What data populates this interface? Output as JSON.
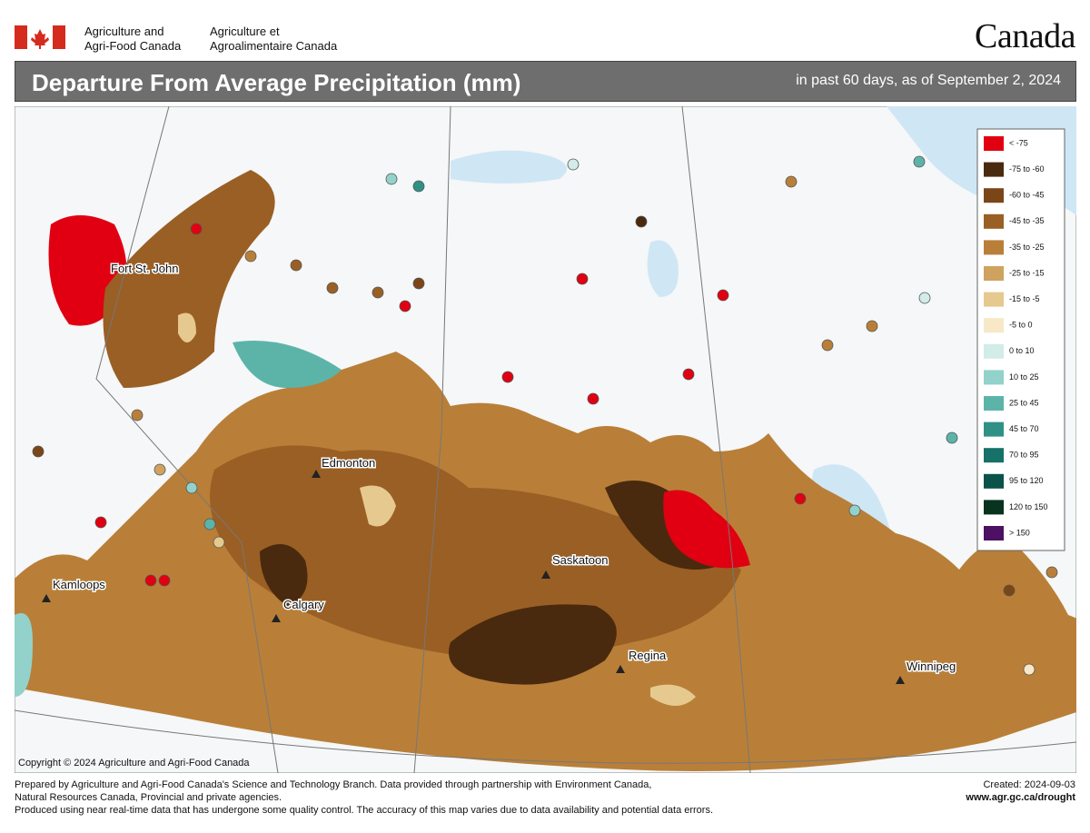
{
  "header": {
    "dept_en": [
      "Agriculture and",
      "Agri-Food Canada"
    ],
    "dept_fr": [
      "Agriculture et",
      "Agroalimentaire Canada"
    ],
    "wordmark": "Canada"
  },
  "title": "Departure From Average Precipitation (mm)",
  "subtitle": "in past 60 days, as of September 2, 2024",
  "legend": [
    {
      "label": "< -75",
      "color": "#e00012"
    },
    {
      "label": "-75 to -60",
      "color": "#4a2a0e"
    },
    {
      "label": "-60 to -45",
      "color": "#7b4617"
    },
    {
      "label": "-45 to -35",
      "color": "#9a5f24"
    },
    {
      "label": "-35 to -25",
      "color": "#b97f38"
    },
    {
      "label": "-25 to -15",
      "color": "#cfa260"
    },
    {
      "label": "-15 to -5",
      "color": "#e6c98f"
    },
    {
      "label": "-5 to 0",
      "color": "#f7e8c8"
    },
    {
      "label": "0 to 10",
      "color": "#d2ece8"
    },
    {
      "label": "10 to 25",
      "color": "#92d2ca"
    },
    {
      "label": "25 to 45",
      "color": "#5cb4a9"
    },
    {
      "label": "45 to 70",
      "color": "#2f9186"
    },
    {
      "label": "70 to 95",
      "color": "#167168"
    },
    {
      "label": "95 to 120",
      "color": "#0b524a"
    },
    {
      "label": "120 to 150",
      "color": "#07331f"
    },
    {
      "label": "> 150",
      "color": "#4d1063"
    }
  ],
  "cities": [
    "Fort St. John",
    "Edmonton",
    "Saskatoon",
    "Kamloops",
    "Calgary",
    "Regina",
    "Winnipeg"
  ],
  "copyright": "Copyright © 2024 Agriculture and Agri-Food Canada",
  "footer": {
    "lines": [
      "Prepared by Agriculture and Agri-Food Canada's Science and Technology Branch. Data provided through partnership with Environment Canada,",
      "Natural Resources Canada, Provincial and private agencies.",
      "Produced using near real-time data that has undergone some quality control. The accuracy of this map varies due to data availability and potential data errors."
    ],
    "created": "Created: 2024-09-03",
    "url": "www.agr.gc.ca/drought"
  }
}
